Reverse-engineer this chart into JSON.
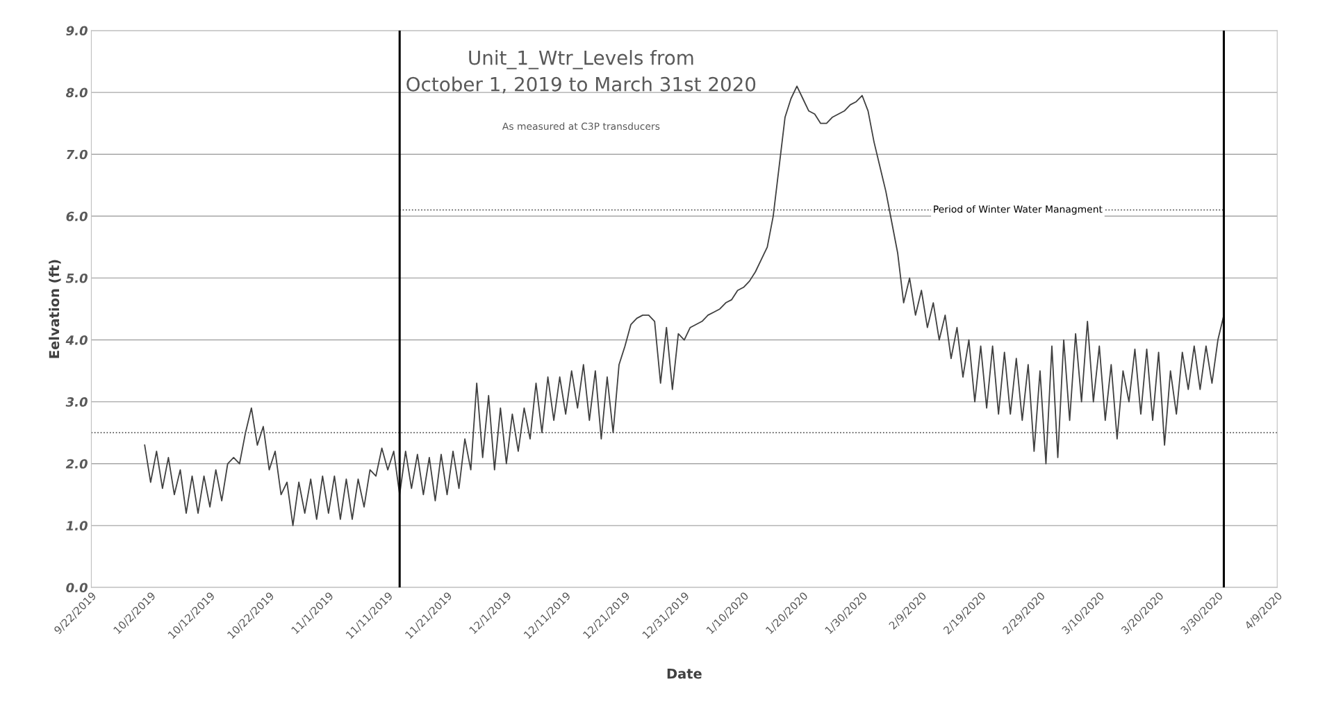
{
  "chart_data": {
    "type": "line",
    "title": "Unit_1_Wtr_Levels from\nOctober 1, 2019 to March 31st 2020",
    "subtitle": "As measured at C3P transducers",
    "xlabel": "Date",
    "ylabel": "Eelvation (ft)",
    "x": [
      "2019-10-01",
      "2019-10-02",
      "2019-10-03",
      "2019-10-04",
      "2019-10-05",
      "2019-10-06",
      "2019-10-07",
      "2019-10-08",
      "2019-10-09",
      "2019-10-10",
      "2019-10-11",
      "2019-10-12",
      "2019-10-13",
      "2019-10-14",
      "2019-10-15",
      "2019-10-16",
      "2019-10-17",
      "2019-10-18",
      "2019-10-19",
      "2019-10-20",
      "2019-10-21",
      "2019-10-22",
      "2019-10-23",
      "2019-10-24",
      "2019-10-25",
      "2019-10-26",
      "2019-10-27",
      "2019-10-28",
      "2019-10-29",
      "2019-10-30",
      "2019-10-31",
      "2019-11-01",
      "2019-11-02",
      "2019-11-03",
      "2019-11-04",
      "2019-11-05",
      "2019-11-06",
      "2019-11-07",
      "2019-11-08",
      "2019-11-09",
      "2019-11-10",
      "2019-11-11",
      "2019-11-12",
      "2019-11-13",
      "2019-11-14",
      "2019-11-15",
      "2019-11-16",
      "2019-11-17",
      "2019-11-18",
      "2019-11-19",
      "2019-11-20",
      "2019-11-21",
      "2019-11-22",
      "2019-11-23",
      "2019-11-24",
      "2019-11-25",
      "2019-11-26",
      "2019-11-27",
      "2019-11-28",
      "2019-11-29",
      "2019-11-30",
      "2019-12-01",
      "2019-12-02",
      "2019-12-03",
      "2019-12-04",
      "2019-12-05",
      "2019-12-06",
      "2019-12-07",
      "2019-12-08",
      "2019-12-09",
      "2019-12-10",
      "2019-12-11",
      "2019-12-12",
      "2019-12-13",
      "2019-12-14",
      "2019-12-15",
      "2019-12-16",
      "2019-12-17",
      "2019-12-18",
      "2019-12-19",
      "2019-12-20",
      "2019-12-21",
      "2019-12-22",
      "2019-12-23",
      "2019-12-24",
      "2019-12-25",
      "2019-12-26",
      "2019-12-27",
      "2019-12-28",
      "2019-12-29",
      "2019-12-30",
      "2019-12-31",
      "2020-01-01",
      "2020-01-02",
      "2020-01-03",
      "2020-01-04",
      "2020-01-05",
      "2020-01-06",
      "2020-01-07",
      "2020-01-08",
      "2020-01-09",
      "2020-01-10",
      "2020-01-11",
      "2020-01-12",
      "2020-01-13",
      "2020-01-14",
      "2020-01-15",
      "2020-01-16",
      "2020-01-17",
      "2020-01-18",
      "2020-01-19",
      "2020-01-20",
      "2020-01-21",
      "2020-01-22",
      "2020-01-23",
      "2020-01-24",
      "2020-01-25",
      "2020-01-26",
      "2020-01-27",
      "2020-01-28",
      "2020-01-29",
      "2020-01-30",
      "2020-01-31",
      "2020-02-01",
      "2020-02-02",
      "2020-02-03",
      "2020-02-04",
      "2020-02-05",
      "2020-02-06",
      "2020-02-07",
      "2020-02-08",
      "2020-02-09",
      "2020-02-10",
      "2020-02-11",
      "2020-02-12",
      "2020-02-13",
      "2020-02-14",
      "2020-02-15",
      "2020-02-16",
      "2020-02-17",
      "2020-02-18",
      "2020-02-19",
      "2020-02-20",
      "2020-02-21",
      "2020-02-22",
      "2020-02-23",
      "2020-02-24",
      "2020-02-25",
      "2020-02-26",
      "2020-02-27",
      "2020-02-28",
      "2020-02-29",
      "2020-03-01",
      "2020-03-02",
      "2020-03-03",
      "2020-03-04",
      "2020-03-05",
      "2020-03-06",
      "2020-03-07",
      "2020-03-08",
      "2020-03-09",
      "2020-03-10",
      "2020-03-11",
      "2020-03-12",
      "2020-03-13",
      "2020-03-14",
      "2020-03-15",
      "2020-03-16",
      "2020-03-17",
      "2020-03-18",
      "2020-03-19",
      "2020-03-20",
      "2020-03-21",
      "2020-03-22",
      "2020-03-23",
      "2020-03-24",
      "2020-03-25",
      "2020-03-26",
      "2020-03-27",
      "2020-03-28",
      "2020-03-29",
      "2020-03-30",
      "2020-03-31"
    ],
    "series": [
      {
        "color": "#404040",
        "values": [
          2.3,
          1.7,
          2.2,
          1.6,
          2.1,
          1.5,
          1.9,
          1.2,
          1.8,
          1.2,
          1.8,
          1.3,
          1.9,
          1.4,
          2.0,
          2.1,
          2.0,
          2.5,
          2.9,
          2.3,
          2.6,
          1.9,
          2.2,
          1.5,
          1.7,
          1.0,
          1.7,
          1.2,
          1.75,
          1.1,
          1.8,
          1.2,
          1.8,
          1.1,
          1.75,
          1.1,
          1.75,
          1.3,
          1.9,
          1.8,
          2.25,
          1.9,
          2.2,
          1.5,
          2.2,
          1.6,
          2.15,
          1.5,
          2.1,
          1.4,
          2.15,
          1.5,
          2.2,
          1.6,
          2.4,
          1.9,
          3.3,
          2.1,
          3.1,
          1.9,
          2.9,
          2.0,
          2.8,
          2.2,
          2.9,
          2.4,
          3.3,
          2.5,
          3.4,
          2.7,
          3.4,
          2.8,
          3.5,
          2.9,
          3.6,
          2.7,
          3.5,
          2.4,
          3.4,
          2.5,
          3.6,
          3.9,
          4.25,
          4.35,
          4.4,
          4.4,
          4.3,
          3.3,
          4.2,
          3.2,
          4.1,
          4.0,
          4.2,
          4.25,
          4.3,
          4.4,
          4.45,
          4.5,
          4.6,
          4.65,
          4.8,
          4.85,
          4.95,
          5.1,
          5.3,
          5.5,
          6.0,
          6.8,
          7.6,
          7.9,
          8.1,
          7.9,
          7.7,
          7.65,
          7.5,
          7.5,
          7.6,
          7.65,
          7.7,
          7.8,
          7.85,
          7.95,
          7.7,
          7.2,
          6.8,
          6.4,
          5.9,
          5.4,
          4.6,
          5.0,
          4.4,
          4.8,
          4.2,
          4.6,
          4.0,
          4.4,
          3.7,
          4.2,
          3.4,
          4.0,
          3.0,
          3.9,
          2.9,
          3.9,
          2.8,
          3.8,
          2.8,
          3.7,
          2.7,
          3.6,
          2.2,
          3.5,
          2.0,
          3.9,
          2.1,
          4.0,
          2.7,
          4.1,
          3.0,
          4.3,
          3.0,
          3.9,
          2.7,
          3.6,
          2.4,
          3.5,
          3.0,
          3.85,
          2.8,
          3.85,
          2.7,
          3.8,
          2.3,
          3.5,
          2.8,
          3.8,
          3.2,
          3.9,
          3.2,
          3.9,
          3.3,
          4.0,
          4.4
        ]
      }
    ],
    "xlim": [
      "2019-09-22",
      "2020-04-09"
    ],
    "xticks": [
      {
        "value": "2019-09-22",
        "label": "9/22/2019"
      },
      {
        "value": "2019-10-02",
        "label": "10/2/2019"
      },
      {
        "value": "2019-10-12",
        "label": "10/12/2019"
      },
      {
        "value": "2019-10-22",
        "label": "10/22/2019"
      },
      {
        "value": "2019-11-01",
        "label": "11/1/2019"
      },
      {
        "value": "2019-11-11",
        "label": "11/11/2019"
      },
      {
        "value": "2019-11-21",
        "label": "11/21/2019"
      },
      {
        "value": "2019-12-01",
        "label": "12/1/2019"
      },
      {
        "value": "2019-12-11",
        "label": "12/11/2019"
      },
      {
        "value": "2019-12-21",
        "label": "12/21/2019"
      },
      {
        "value": "2019-12-31",
        "label": "12/31/2019"
      },
      {
        "value": "2020-01-10",
        "label": "1/10/2020"
      },
      {
        "value": "2020-01-20",
        "label": "1/20/2020"
      },
      {
        "value": "2020-01-30",
        "label": "1/30/2020"
      },
      {
        "value": "2020-02-09",
        "label": "2/9/2020"
      },
      {
        "value": "2020-02-19",
        "label": "2/19/2020"
      },
      {
        "value": "2020-02-29",
        "label": "2/29/2020"
      },
      {
        "value": "2020-03-10",
        "label": "3/10/2020"
      },
      {
        "value": "2020-03-20",
        "label": "3/20/2020"
      },
      {
        "value": "2020-03-30",
        "label": "3/30/2020"
      },
      {
        "value": "2020-04-09",
        "label": "4/9/2020"
      }
    ],
    "ylim": [
      0,
      9
    ],
    "yticks": [
      {
        "value": 0,
        "label": "0.0"
      },
      {
        "value": 1,
        "label": "1.0"
      },
      {
        "value": 2,
        "label": "2.0"
      },
      {
        "value": 3,
        "label": "3.0"
      },
      {
        "value": 4,
        "label": "4.0"
      },
      {
        "value": 5,
        "label": "5.0"
      },
      {
        "value": 6,
        "label": "6.0"
      },
      {
        "value": 7,
        "label": "7.0"
      },
      {
        "value": 8,
        "label": "8.0"
      },
      {
        "value": 9,
        "label": "9.0"
      }
    ],
    "ref_lines": [
      {
        "axis": "x",
        "value": "2019-11-13",
        "color": "#000000",
        "line_style": "solid"
      },
      {
        "axis": "x",
        "value": "2020-03-31",
        "color": "#000000",
        "line_style": "solid"
      },
      {
        "axis": "y",
        "value": 2.5,
        "color": "#555555",
        "line_style": "dotted"
      },
      {
        "axis": "y",
        "value": 6.1,
        "label": "Period of Winter Water Managment",
        "color": "#555555",
        "line_style": "dotted"
      }
    ],
    "grid": "y",
    "legend": false,
    "marker": "none",
    "line_style": "solid"
  }
}
